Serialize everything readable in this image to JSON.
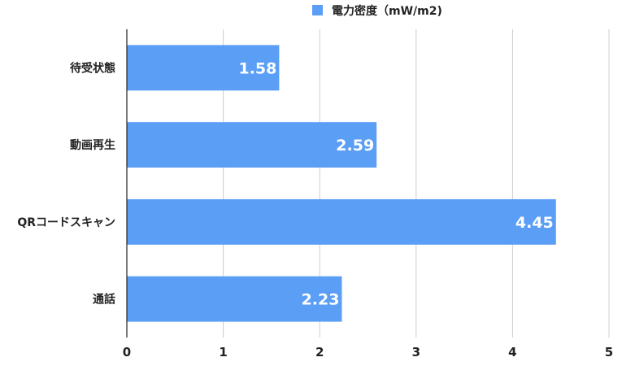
{
  "chart_data": {
    "type": "bar",
    "orientation": "horizontal",
    "categories": [
      "待受状態",
      "動画再生",
      "QRコードスキャン",
      "通話"
    ],
    "series": [
      {
        "name": "電力密度（mW/m2)",
        "values": [
          1.58,
          2.59,
          4.45,
          2.23
        ],
        "color": "#5b9ef6"
      }
    ],
    "value_labels": [
      "1.58",
      "2.59",
      "4.45",
      "2.23"
    ],
    "xlim": [
      0,
      5
    ],
    "x_ticks": [
      0,
      1,
      2,
      3,
      4,
      5
    ],
    "grid": true,
    "legend": "top-center",
    "title": "",
    "xlabel": "",
    "ylabel": ""
  }
}
